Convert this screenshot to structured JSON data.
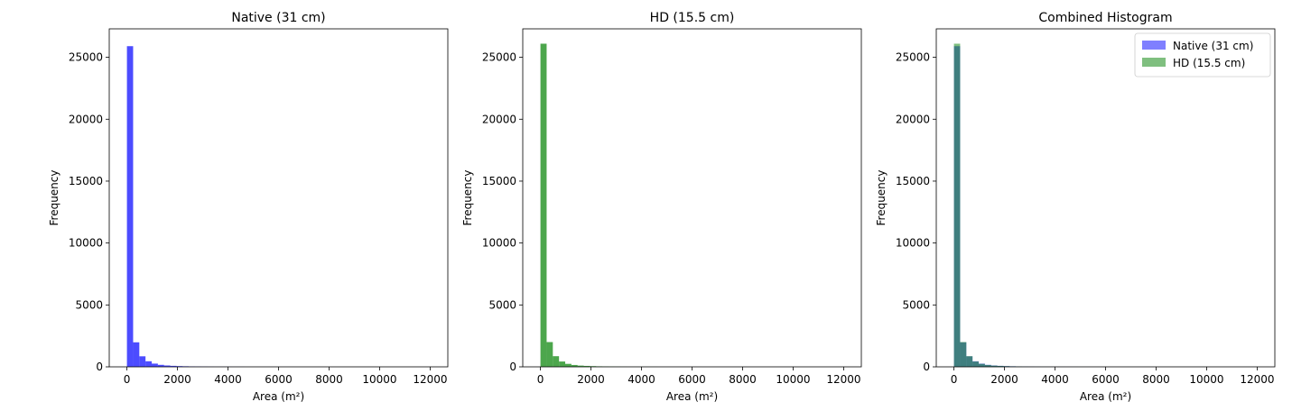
{
  "chart_data": [
    {
      "type": "bar",
      "title": "Native (31 cm)",
      "xlabel": "Area (m²)",
      "ylabel": "Frequency",
      "xlim": [
        -700,
        12700
      ],
      "ylim": [
        0,
        27300
      ],
      "xticks": [
        0,
        2000,
        4000,
        6000,
        8000,
        10000,
        12000
      ],
      "yticks": [
        0,
        5000,
        10000,
        15000,
        20000,
        25000
      ],
      "bin_width": 245,
      "bin_start": 0,
      "grid": false,
      "series": [
        {
          "color": "#0000ff",
          "alpha": 0.7,
          "values": [
            25900,
            1980,
            850,
            450,
            260,
            160,
            110,
            80,
            60,
            45,
            35,
            25,
            20,
            15,
            12,
            10,
            8,
            6,
            5,
            4,
            4,
            3,
            3,
            2,
            2,
            2,
            2,
            1,
            1,
            1,
            1,
            1,
            1,
            1,
            1,
            1,
            1,
            1,
            1,
            1,
            1,
            1,
            1,
            1,
            1,
            1,
            1,
            1,
            1,
            1
          ]
        }
      ]
    },
    {
      "type": "bar",
      "title": "HD (15.5 cm)",
      "xlabel": "Area (m²)",
      "ylabel": "Frequency",
      "xlim": [
        -700,
        12700
      ],
      "ylim": [
        0,
        27300
      ],
      "xticks": [
        0,
        2000,
        4000,
        6000,
        8000,
        10000,
        12000
      ],
      "yticks": [
        0,
        5000,
        10000,
        15000,
        20000,
        25000
      ],
      "bin_width": 245,
      "bin_start": 0,
      "grid": false,
      "series": [
        {
          "color": "#008000",
          "alpha": 0.7,
          "values": [
            26100,
            2000,
            860,
            430,
            240,
            150,
            100,
            75,
            55,
            40,
            30,
            22,
            18,
            14,
            11,
            9,
            7,
            6,
            5,
            4,
            3,
            3,
            2,
            2,
            2,
            2,
            1,
            1,
            1,
            1,
            1,
            1,
            1,
            1,
            1,
            1,
            1,
            1,
            1,
            1,
            1,
            1,
            1,
            1,
            1,
            1,
            1,
            1,
            1,
            1
          ]
        }
      ]
    },
    {
      "type": "bar",
      "title": "Combined Histogram",
      "xlabel": "Area (m²)",
      "ylabel": "Frequency",
      "xlim": [
        -700,
        12700
      ],
      "ylim": [
        0,
        27300
      ],
      "xticks": [
        0,
        2000,
        4000,
        6000,
        8000,
        10000,
        12000
      ],
      "yticks": [
        0,
        5000,
        10000,
        15000,
        20000,
        25000
      ],
      "bin_width": 245,
      "bin_start": 0,
      "grid": false,
      "legend": "top-right",
      "series": [
        {
          "name": "Native (31 cm)",
          "color": "#0000ff",
          "alpha": 0.5,
          "values": [
            25900,
            1980,
            850,
            450,
            260,
            160,
            110,
            80,
            60,
            45,
            35,
            25,
            20,
            15,
            12,
            10,
            8,
            6,
            5,
            4,
            4,
            3,
            3,
            2,
            2,
            2,
            2,
            1,
            1,
            1,
            1,
            1,
            1,
            1,
            1,
            1,
            1,
            1,
            1,
            1,
            1,
            1,
            1,
            1,
            1,
            1,
            1,
            1,
            1,
            1
          ]
        },
        {
          "name": "HD (15.5 cm)",
          "color": "#008000",
          "alpha": 0.5,
          "values": [
            26100,
            2000,
            860,
            430,
            240,
            150,
            100,
            75,
            55,
            40,
            30,
            22,
            18,
            14,
            11,
            9,
            7,
            6,
            5,
            4,
            3,
            3,
            2,
            2,
            2,
            2,
            1,
            1,
            1,
            1,
            1,
            1,
            1,
            1,
            1,
            1,
            1,
            1,
            1,
            1,
            1,
            1,
            1,
            1,
            1,
            1,
            1,
            1,
            1,
            1
          ]
        }
      ]
    }
  ]
}
